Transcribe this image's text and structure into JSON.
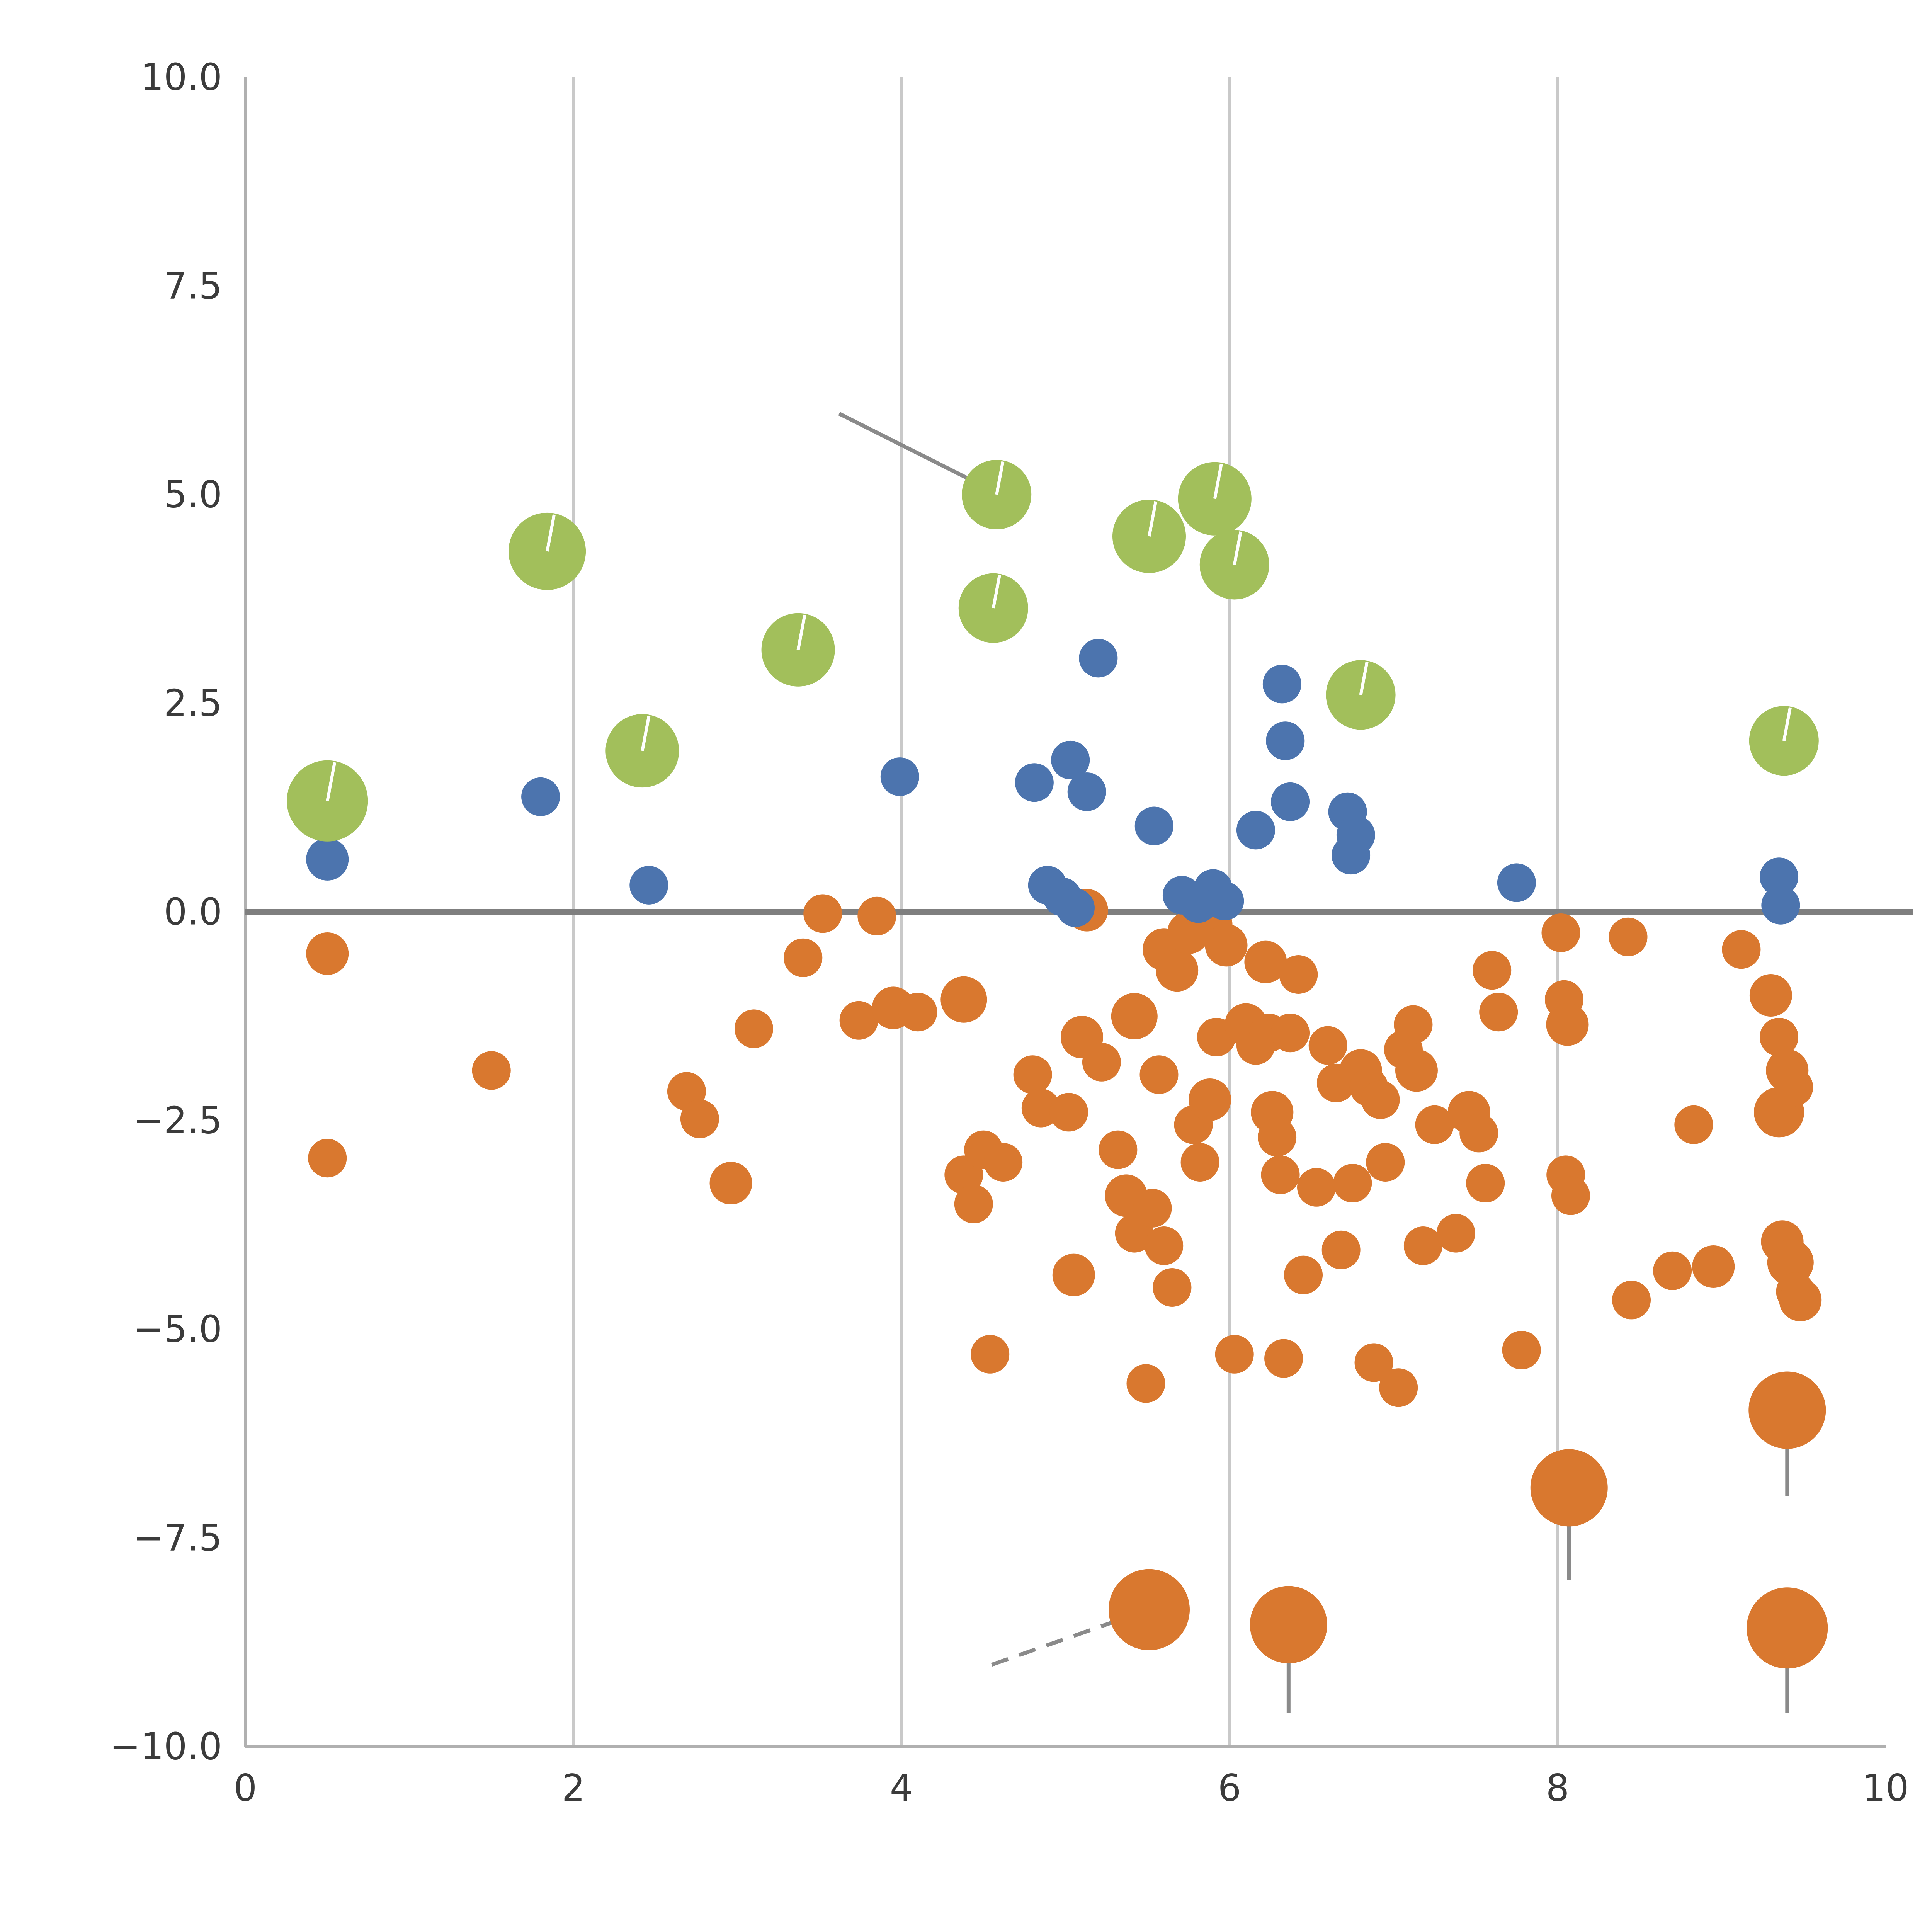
{
  "chart_data": {
    "type": "scatter",
    "title": "",
    "xlabel": "",
    "ylabel": "",
    "xlim": [
      0,
      10
    ],
    "ylim": [
      -10,
      10
    ],
    "x_ticks": [
      0,
      2,
      4,
      6,
      8,
      10
    ],
    "x_tick_labels": [
      "0",
      "2",
      "4",
      "6",
      "8",
      "10"
    ],
    "y_ticks": [
      10.0,
      7.5,
      5.0,
      2.5,
      0.0,
      -2.5,
      -5.0,
      -7.5,
      -10.0
    ],
    "y_tick_labels": [
      "10.0",
      "7.5",
      "5.0",
      "2.5",
      "0.0",
      "−2.5",
      "−5.0",
      "−7.5",
      "−10.0"
    ],
    "grid": {
      "vertical_at": [
        2,
        4,
        6,
        8
      ],
      "color": "#c9c9c9",
      "width": 1.4
    },
    "spines": {
      "color": "#b0b0b0",
      "width": 1.6
    },
    "zero_line": {
      "y": 0,
      "color": "#7f7f7f",
      "width": 3,
      "full_width": true
    },
    "legend": "none",
    "tick_label_color": "#3b3b3b",
    "tick_label_size": 19,
    "series": [
      {
        "name": "orange-dots",
        "color": "#d9782f",
        "pin": false,
        "points": [
          [
            0.5,
            -0.5,
            11
          ],
          [
            0.5,
            -2.95,
            10
          ],
          [
            1.5,
            -1.9,
            10
          ],
          [
            2.69,
            -2.15,
            10
          ],
          [
            2.77,
            -2.48,
            10
          ],
          [
            2.96,
            -3.25,
            11
          ],
          [
            3.1,
            -1.4,
            10
          ],
          [
            3.4,
            -0.55,
            10
          ],
          [
            3.52,
            -0.02,
            10
          ],
          [
            3.74,
            -1.3,
            10
          ],
          [
            3.85,
            -0.05,
            10
          ],
          [
            3.95,
            -1.15,
            11
          ],
          [
            4.1,
            -1.2,
            10
          ],
          [
            4.38,
            -1.05,
            12
          ],
          [
            4.38,
            -3.15,
            10
          ],
          [
            4.44,
            -3.5,
            10
          ],
          [
            4.5,
            -2.85,
            10
          ],
          [
            4.54,
            -5.3,
            10
          ],
          [
            4.62,
            -3.0,
            10
          ],
          [
            4.8,
            -1.95,
            10
          ],
          [
            4.85,
            -2.35,
            10
          ],
          [
            5.02,
            -2.4,
            10
          ],
          [
            5.05,
            -4.35,
            11
          ],
          [
            5.1,
            -1.5,
            11
          ],
          [
            5.13,
            0.02,
            11
          ],
          [
            5.22,
            -1.8,
            10
          ],
          [
            5.32,
            -2.85,
            10
          ],
          [
            5.37,
            -3.4,
            11
          ],
          [
            5.42,
            -3.85,
            10
          ],
          [
            5.42,
            -1.25,
            12
          ],
          [
            5.49,
            -5.65,
            10
          ],
          [
            5.53,
            -3.55,
            10
          ],
          [
            5.57,
            -1.95,
            10
          ],
          [
            5.6,
            -4.0,
            10
          ],
          [
            5.65,
            -4.5,
            10
          ],
          [
            5.6,
            -0.45,
            11
          ],
          [
            5.68,
            -0.7,
            11
          ],
          [
            5.75,
            -0.25,
            11
          ],
          [
            5.78,
            -2.55,
            10
          ],
          [
            5.82,
            -3.0,
            10
          ],
          [
            5.88,
            -2.25,
            11
          ],
          [
            5.9,
            -0.15,
            10
          ],
          [
            5.92,
            -1.5,
            10
          ],
          [
            5.98,
            -0.4,
            11
          ],
          [
            6.03,
            -5.3,
            10
          ],
          [
            6.1,
            -1.35,
            11
          ],
          [
            6.16,
            -1.6,
            10
          ],
          [
            6.22,
            -0.6,
            11
          ],
          [
            6.24,
            -1.45,
            10
          ],
          [
            6.26,
            -2.4,
            11
          ],
          [
            6.29,
            -2.7,
            10
          ],
          [
            6.31,
            -3.15,
            10
          ],
          [
            6.33,
            -5.35,
            10
          ],
          [
            6.37,
            -1.45,
            10
          ],
          [
            6.42,
            -0.75,
            10
          ],
          [
            6.45,
            -4.35,
            10
          ],
          [
            6.53,
            -3.3,
            10
          ],
          [
            6.6,
            -1.6,
            10
          ],
          [
            6.65,
            -2.05,
            10
          ],
          [
            6.68,
            -4.05,
            10
          ],
          [
            6.75,
            -3.25,
            10
          ],
          [
            6.8,
            -1.9,
            11
          ],
          [
            6.85,
            -2.1,
            10
          ],
          [
            6.88,
            -5.4,
            10
          ],
          [
            6.92,
            -2.25,
            10
          ],
          [
            6.95,
            -3.0,
            10
          ],
          [
            7.03,
            -5.7,
            10
          ],
          [
            7.06,
            -1.65,
            10
          ],
          [
            7.12,
            -1.35,
            10
          ],
          [
            7.14,
            -1.9,
            11
          ],
          [
            7.18,
            -4.0,
            10
          ],
          [
            7.25,
            -2.55,
            10
          ],
          [
            7.38,
            -3.85,
            10
          ],
          [
            7.46,
            -2.4,
            11
          ],
          [
            7.52,
            -2.65,
            10
          ],
          [
            7.56,
            -3.25,
            10
          ],
          [
            7.6,
            -0.7,
            10
          ],
          [
            7.64,
            -1.2,
            10
          ],
          [
            7.78,
            -5.25,
            10
          ],
          [
            8.02,
            -0.25,
            10
          ],
          [
            8.04,
            -1.05,
            10
          ],
          [
            8.06,
            -1.35,
            11
          ],
          [
            8.05,
            -3.15,
            10
          ],
          [
            8.08,
            -3.4,
            10
          ],
          [
            8.43,
            -0.3,
            10
          ],
          [
            8.45,
            -4.65,
            10
          ],
          [
            8.7,
            -4.3,
            10
          ],
          [
            8.83,
            -2.55,
            10
          ],
          [
            8.95,
            -4.25,
            11
          ],
          [
            9.12,
            -0.45,
            10
          ],
          [
            9.3,
            -1.0,
            11
          ],
          [
            9.35,
            -1.5,
            10
          ],
          [
            9.35,
            -2.4,
            13
          ],
          [
            9.37,
            -3.95,
            11
          ],
          [
            9.4,
            -1.9,
            11
          ],
          [
            9.42,
            -4.2,
            12
          ],
          [
            9.44,
            -2.1,
            10
          ],
          [
            9.45,
            -4.55,
            10
          ],
          [
            9.48,
            -4.65,
            11
          ],
          [
            5.51,
            -8.36,
            21
          ],
          [
            6.36,
            -8.54,
            20
          ],
          [
            8.07,
            -6.9,
            20
          ],
          [
            9.4,
            -5.97,
            20
          ],
          [
            9.4,
            -8.58,
            21
          ]
        ]
      },
      {
        "name": "blue-dots",
        "color": "#4c74ae",
        "pin": false,
        "points": [
          [
            0.5,
            0.63,
            11
          ],
          [
            1.8,
            1.38,
            10
          ],
          [
            2.46,
            0.32,
            10
          ],
          [
            3.99,
            1.62,
            10
          ],
          [
            4.81,
            1.55,
            10
          ],
          [
            5.03,
            1.82,
            10
          ],
          [
            5.13,
            1.44,
            10
          ],
          [
            5.2,
            3.04,
            10
          ],
          [
            4.89,
            0.32,
            10
          ],
          [
            4.98,
            0.18,
            10
          ],
          [
            5.06,
            0.05,
            10
          ],
          [
            5.54,
            1.03,
            10
          ],
          [
            5.71,
            0.2,
            10
          ],
          [
            5.81,
            0.1,
            10
          ],
          [
            5.9,
            0.28,
            10
          ],
          [
            5.97,
            0.13,
            10
          ],
          [
            6.16,
            0.98,
            10
          ],
          [
            6.32,
            2.73,
            10
          ],
          [
            6.34,
            2.05,
            10
          ],
          [
            6.37,
            1.32,
            10
          ],
          [
            6.72,
            1.2,
            10
          ],
          [
            6.77,
            0.92,
            10
          ],
          [
            6.74,
            0.68,
            10
          ],
          [
            7.75,
            0.35,
            10
          ],
          [
            9.35,
            0.42,
            10
          ],
          [
            9.36,
            0.08,
            10
          ]
        ]
      },
      {
        "name": "green-bubbles",
        "color": "#a2bf5b",
        "pin": true,
        "pin_color": "#ffffff",
        "points": [
          [
            0.5,
            1.33,
            21
          ],
          [
            1.84,
            4.32,
            20
          ],
          [
            2.42,
            1.93,
            19
          ],
          [
            3.37,
            3.14,
            19
          ],
          [
            4.58,
            5.0,
            18
          ],
          [
            4.56,
            3.64,
            18
          ],
          [
            5.51,
            4.5,
            19
          ],
          [
            5.91,
            4.95,
            19
          ],
          [
            6.03,
            4.16,
            18
          ],
          [
            6.8,
            2.6,
            18
          ],
          [
            9.38,
            2.05,
            18
          ]
        ]
      }
    ],
    "tails": {
      "color": "#8a8a8a",
      "width": 2,
      "segments": [
        {
          "x1": 3.62,
          "y1": 5.97,
          "x2": 4.52,
          "y2": 5.08,
          "dash": false
        },
        {
          "x1": 4.55,
          "y1": -9.02,
          "x2": 5.42,
          "y2": -8.42,
          "dash": true
        },
        {
          "x1": 6.36,
          "y1": -8.6,
          "x2": 6.36,
          "y2": -9.6,
          "dash": false
        },
        {
          "x1": 8.07,
          "y1": -7.0,
          "x2": 8.07,
          "y2": -8.0,
          "dash": false
        },
        {
          "x1": 9.4,
          "y1": -6.05,
          "x2": 9.4,
          "y2": -7.0,
          "dash": false
        },
        {
          "x1": 9.4,
          "y1": -8.65,
          "x2": 9.4,
          "y2": -9.6,
          "dash": false
        }
      ]
    }
  }
}
